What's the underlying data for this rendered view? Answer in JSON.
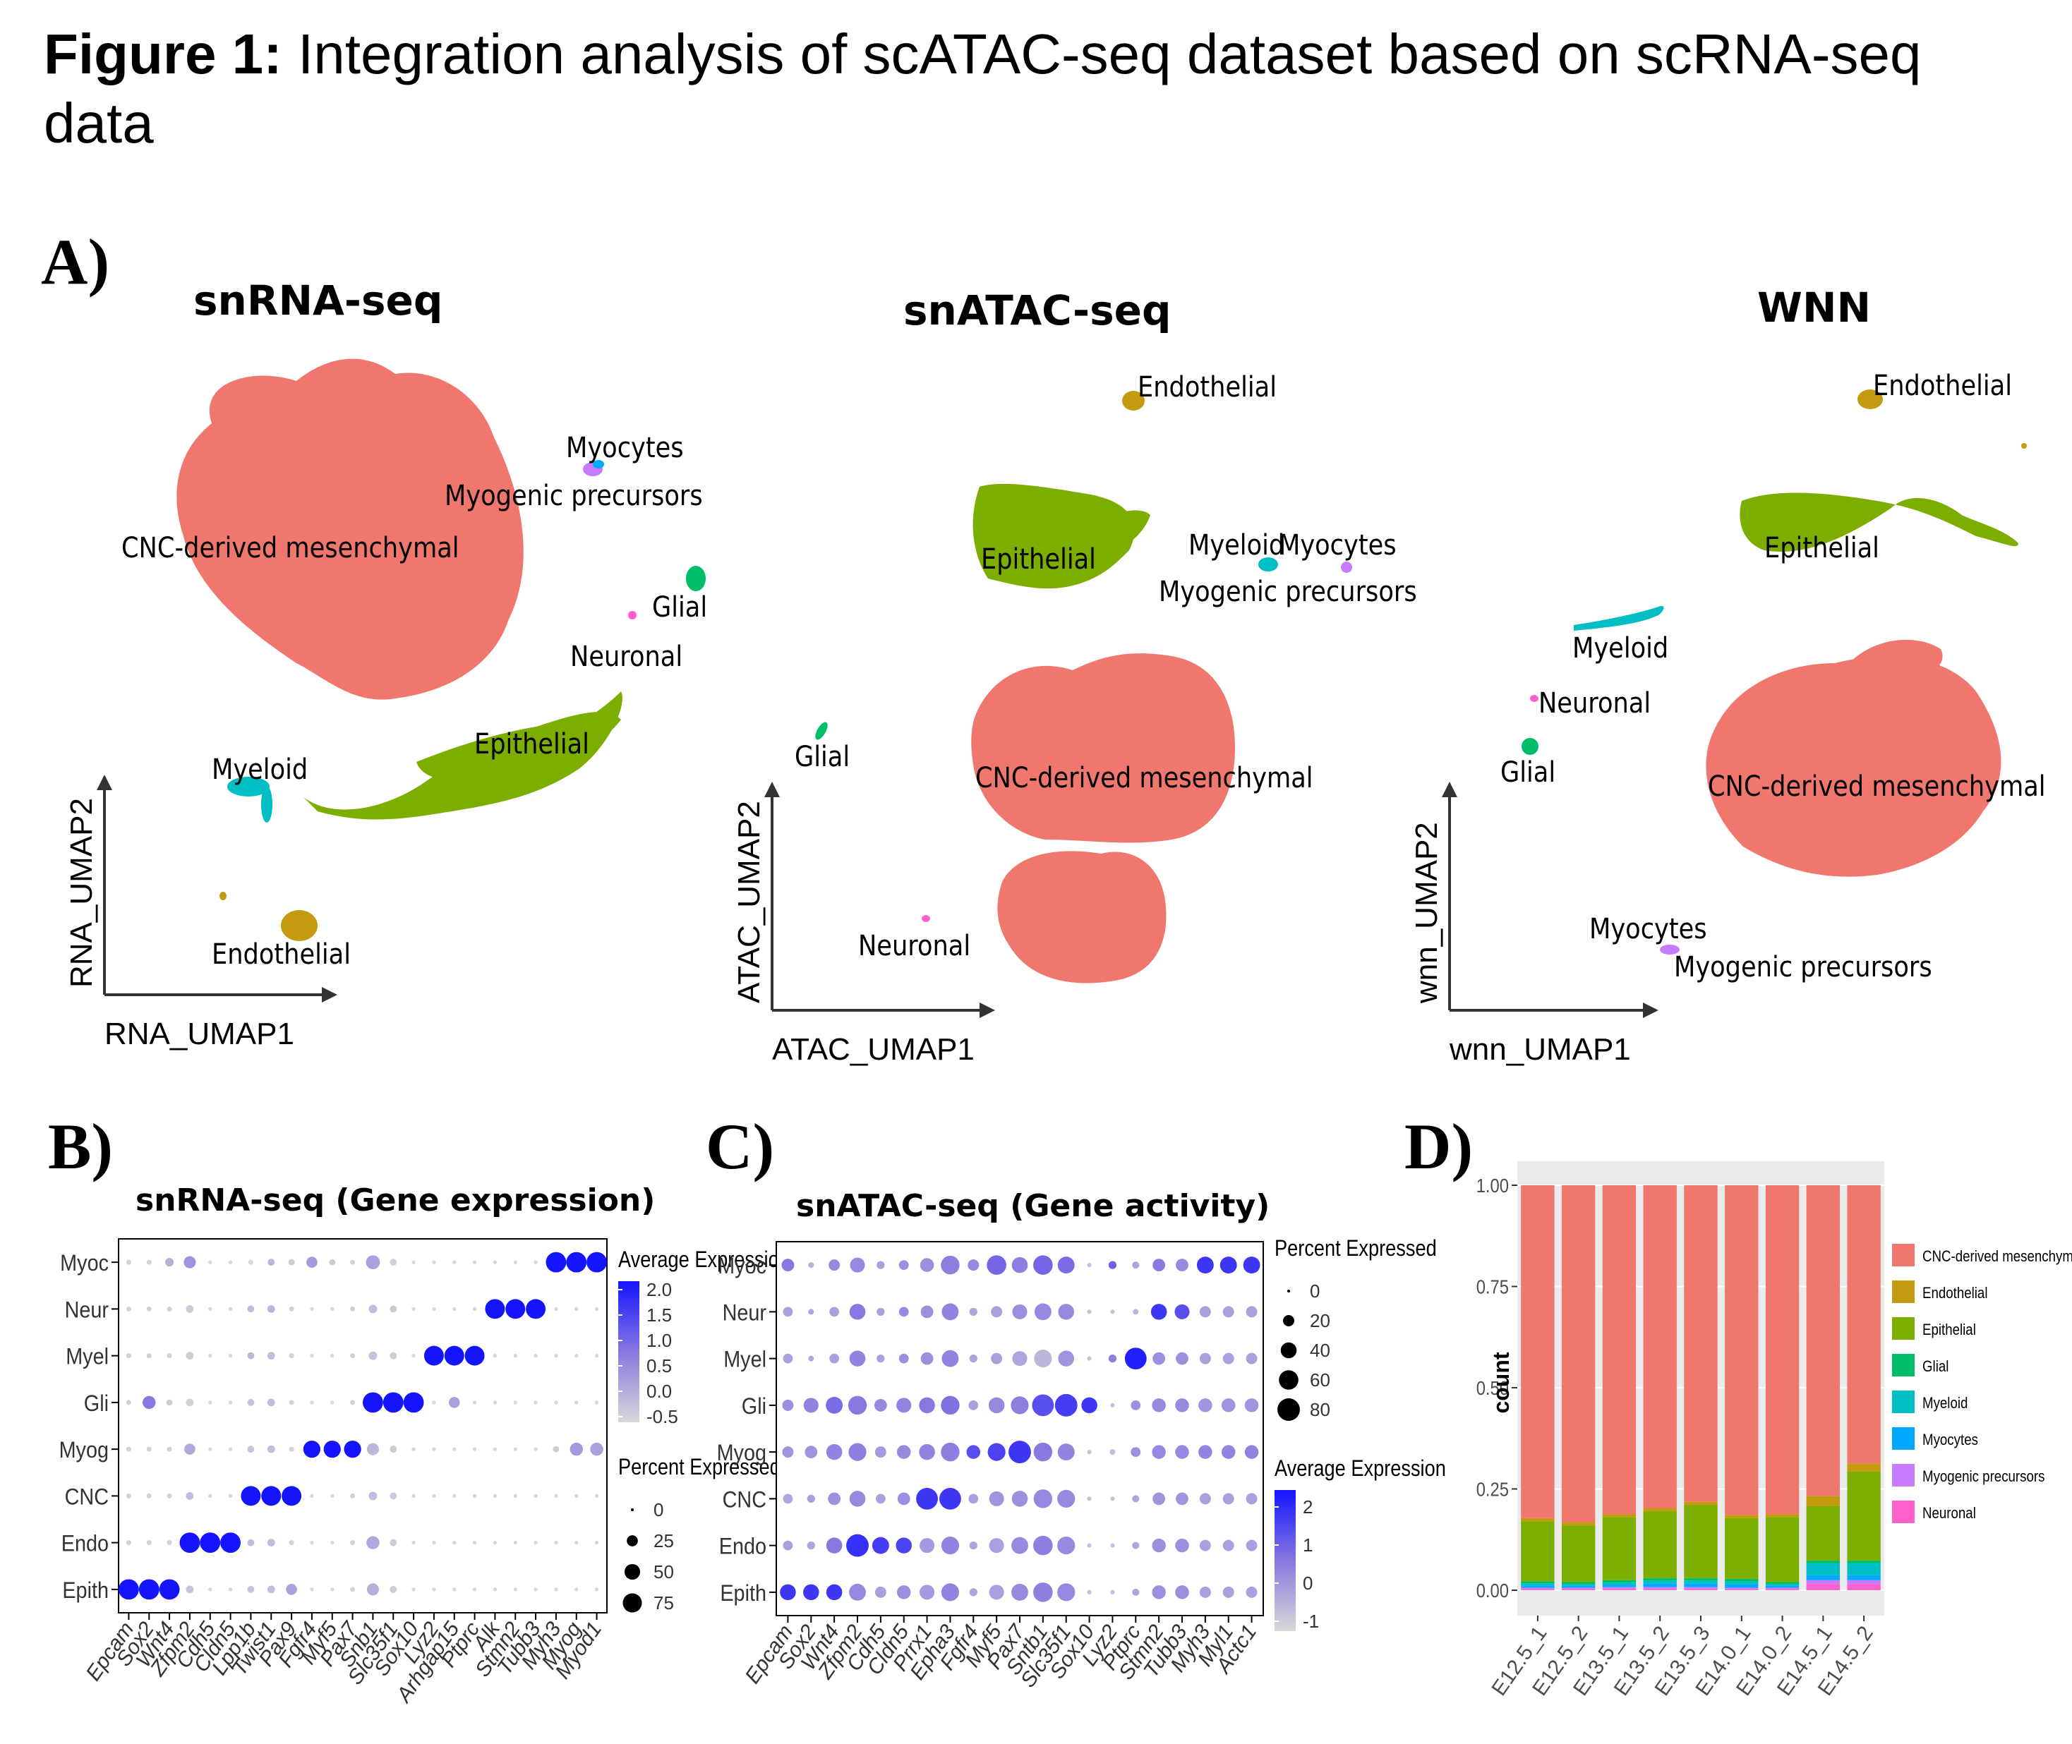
{
  "figure": {
    "label": "Figure 1:",
    "title": "Integration analysis of scATAC-seq dataset based on scRNA-seq data"
  },
  "panels": {
    "A": "A)",
    "B": "B)",
    "C": "C)",
    "D": "D)"
  },
  "colors": {
    "CNC-derived mesenchymal": "#F0776D",
    "Endothelial": "#C49A10",
    "Epithelial": "#7CAE00",
    "Glial": "#00BE67",
    "Myeloid": "#00BFC4",
    "Myocytes": "#00A9FF",
    "Myogenic precursors": "#C77CFF",
    "Neuronal": "#FF61CC"
  },
  "umaps": [
    {
      "title": "snRNA-seq",
      "xlabel": "RNA_UMAP1",
      "ylabel": "RNA_UMAP2",
      "labels": [
        "CNC-derived mesenchymal",
        "Myocytes",
        "Myogenic precursors",
        "Glial",
        "Neuronal",
        "Epithelial",
        "Myeloid",
        "Endothelial"
      ]
    },
    {
      "title": "snATAC-seq",
      "xlabel": "ATAC_UMAP1",
      "ylabel": "ATAC_UMAP2",
      "labels": [
        "Endothelial",
        "Epithelial",
        "Myeloid",
        "Myocytes",
        "Myogenic precursors",
        "Glial",
        "CNC-derived mesenchymal",
        "Neuronal"
      ]
    },
    {
      "title": "WNN",
      "xlabel": "wnn_UMAP1",
      "ylabel": "wnn_UMAP2",
      "labels": [
        "Endothelial",
        "Epithelial",
        "Myeloid",
        "Neuronal",
        "Glial",
        "CNC-derived mesenchymal",
        "Myocytes",
        "Myogenic precursors"
      ]
    }
  ],
  "chart_data": [
    {
      "type": "dotplot",
      "title": "snRNA-seq (Gene expression)",
      "rows": [
        "Myoc",
        "Neur",
        "Myel",
        "Gli",
        "Myog",
        "CNC",
        "Endo",
        "Epith"
      ],
      "columns": [
        "Epcam",
        "Sox2",
        "Wnt4",
        "Zfpm2",
        "Cdh5",
        "Cldn5",
        "Lpp1b",
        "Twist1",
        "Pax9",
        "Fgfr4",
        "Myf5",
        "Pax7",
        "Snb1",
        "Slc35f1",
        "Sox10",
        "Lyz2",
        "Arhgap15",
        "Ptprc",
        "Alk",
        "Stmn2",
        "Tubb3",
        "Myh3",
        "Myog",
        "Myod1"
      ],
      "avg_expression": [
        [
          -0.4,
          -0.4,
          0.1,
          0.5,
          -0.5,
          -0.5,
          -0.5,
          0.0,
          -0.3,
          0.4,
          -0.3,
          -0.4,
          0.3,
          -0.4,
          -0.5,
          -0.5,
          -0.5,
          -0.5,
          -0.5,
          -0.5,
          -0.5,
          2.3,
          2.3,
          2.3
        ],
        [
          -0.4,
          -0.4,
          -0.4,
          -0.3,
          -0.5,
          -0.5,
          -0.1,
          0.0,
          -0.4,
          -0.5,
          -0.5,
          -0.4,
          -0.1,
          -0.3,
          -0.5,
          -0.5,
          -0.5,
          -0.5,
          2.3,
          2.3,
          2.3,
          -0.5,
          -0.5,
          -0.5
        ],
        [
          -0.4,
          -0.4,
          -0.4,
          -0.3,
          -0.5,
          -0.5,
          0.0,
          -0.1,
          -0.4,
          -0.5,
          -0.5,
          -0.4,
          -0.2,
          -0.3,
          -0.5,
          2.3,
          2.3,
          2.3,
          -0.5,
          -0.5,
          -0.5,
          -0.5,
          -0.5,
          -0.5
        ],
        [
          -0.4,
          0.9,
          -0.3,
          -0.4,
          -0.5,
          -0.5,
          -0.2,
          -0.1,
          -0.4,
          -0.5,
          -0.5,
          -0.4,
          2.3,
          2.3,
          2.3,
          -0.5,
          0.3,
          -0.5,
          -0.5,
          -0.5,
          -0.5,
          -0.5,
          -0.5,
          -0.5
        ],
        [
          -0.4,
          -0.4,
          -0.4,
          0.2,
          -0.5,
          -0.5,
          -0.2,
          -0.1,
          -0.4,
          2.3,
          2.3,
          2.3,
          0.0,
          -0.3,
          -0.5,
          -0.5,
          -0.5,
          -0.5,
          -0.5,
          -0.5,
          -0.5,
          -0.3,
          0.4,
          0.3
        ],
        [
          -0.4,
          -0.4,
          -0.4,
          -0.1,
          -0.5,
          -0.5,
          2.3,
          2.3,
          2.3,
          -0.5,
          -0.5,
          -0.4,
          -0.1,
          -0.3,
          -0.5,
          -0.5,
          -0.5,
          -0.5,
          -0.5,
          -0.5,
          -0.5,
          -0.5,
          -0.5,
          -0.5
        ],
        [
          -0.4,
          -0.4,
          -0.4,
          2.3,
          2.3,
          2.3,
          -0.1,
          -0.1,
          -0.4,
          -0.5,
          -0.5,
          -0.4,
          0.2,
          -0.3,
          -0.5,
          -0.5,
          -0.5,
          -0.5,
          -0.5,
          -0.5,
          -0.5,
          -0.5,
          -0.5,
          -0.5
        ],
        [
          2.3,
          2.3,
          2.3,
          -0.2,
          -0.5,
          -0.5,
          -0.2,
          -0.1,
          0.3,
          -0.5,
          -0.5,
          -0.4,
          0.1,
          -0.3,
          -0.5,
          -0.5,
          -0.5,
          -0.5,
          -0.5,
          -0.5,
          -0.5,
          -0.5,
          -0.5,
          -0.5
        ]
      ],
      "pct_expressed": [
        [
          5,
          5,
          15,
          30,
          3,
          3,
          5,
          10,
          8,
          25,
          8,
          5,
          40,
          10,
          3,
          3,
          3,
          3,
          3,
          3,
          3,
          85,
          85,
          85
        ],
        [
          5,
          5,
          5,
          12,
          3,
          3,
          10,
          12,
          5,
          3,
          3,
          5,
          15,
          10,
          3,
          3,
          3,
          3,
          80,
          80,
          80,
          3,
          3,
          3
        ],
        [
          5,
          5,
          5,
          12,
          3,
          3,
          10,
          12,
          5,
          3,
          3,
          5,
          15,
          10,
          3,
          80,
          80,
          80,
          3,
          3,
          3,
          3,
          3,
          3
        ],
        [
          5,
          35,
          8,
          12,
          3,
          3,
          10,
          12,
          5,
          3,
          3,
          5,
          85,
          85,
          85,
          3,
          25,
          3,
          3,
          3,
          3,
          3,
          3,
          3
        ],
        [
          5,
          5,
          5,
          25,
          3,
          3,
          10,
          12,
          5,
          60,
          60,
          60,
          30,
          10,
          3,
          3,
          3,
          3,
          3,
          3,
          3,
          8,
          35,
          35
        ],
        [
          5,
          5,
          5,
          12,
          3,
          3,
          80,
          80,
          80,
          3,
          3,
          5,
          15,
          10,
          3,
          3,
          3,
          3,
          3,
          3,
          3,
          3,
          3,
          3
        ],
        [
          5,
          5,
          5,
          85,
          85,
          85,
          10,
          12,
          5,
          3,
          3,
          5,
          35,
          10,
          3,
          3,
          3,
          3,
          3,
          3,
          3,
          3,
          3,
          3
        ],
        [
          85,
          85,
          85,
          12,
          3,
          3,
          10,
          12,
          25,
          3,
          3,
          5,
          30,
          10,
          3,
          3,
          3,
          3,
          3,
          3,
          3,
          3,
          3,
          3
        ]
      ],
      "legend_expression": {
        "title": "Average Expression",
        "ticks": [
          "2.0",
          "1.5",
          "1.0",
          "0.5",
          "0.0",
          "-0.5"
        ]
      },
      "legend_percent": {
        "title": "Percent Expressed",
        "ticks": [
          "0",
          "25",
          "50",
          "75"
        ]
      }
    },
    {
      "type": "dotplot",
      "title": "snATAC-seq (Gene activity)",
      "rows": [
        "Myoc",
        "Neur",
        "Myel",
        "Gli",
        "Myog",
        "CNC",
        "Endo",
        "Epith"
      ],
      "columns": [
        "Epcam",
        "Sox2",
        "Wnt4",
        "Zfpm2",
        "Cdh5",
        "Cldn5",
        "Prrx1",
        "Epha3",
        "Fgfr4",
        "Myf5",
        "Pax7",
        "Sntb1",
        "Slc35f1",
        "Sox10",
        "Lyz2",
        "Ptprc",
        "Stmn2",
        "Tubb3",
        "Myh3",
        "Myl1",
        "Actc1"
      ],
      "avg_expression": [
        [
          0.5,
          -0.5,
          0.2,
          0.2,
          -0.2,
          0.1,
          0.1,
          0.4,
          0.2,
          0.8,
          0.4,
          0.8,
          0.7,
          -0.8,
          0.9,
          -0.3,
          0.5,
          0.2,
          1.6,
          1.6,
          1.6
        ],
        [
          -0.2,
          -0.3,
          -0.2,
          0.5,
          -0.2,
          0.2,
          0.1,
          0.3,
          -0.3,
          -0.2,
          0.1,
          0.2,
          0.2,
          -0.8,
          -0.8,
          -0.6,
          1.6,
          1.2,
          -0.2,
          -0.2,
          -0.2
        ],
        [
          -0.2,
          -0.4,
          -0.2,
          0.3,
          -0.2,
          0.1,
          0.1,
          0.3,
          -0.3,
          -0.2,
          -0.3,
          -0.6,
          0.0,
          -0.8,
          0.4,
          2.0,
          0.1,
          0.1,
          -0.2,
          -0.2,
          -0.2
        ],
        [
          0.1,
          0.3,
          0.7,
          0.5,
          0.2,
          0.3,
          0.5,
          0.6,
          -0.2,
          0.2,
          0.4,
          1.2,
          1.5,
          1.6,
          -0.8,
          0.1,
          0.2,
          0.2,
          0.0,
          0.0,
          0.0
        ],
        [
          0.0,
          0.0,
          0.3,
          0.4,
          -0.1,
          0.2,
          0.3,
          0.4,
          1.2,
          1.4,
          1.6,
          0.5,
          0.3,
          -0.8,
          -0.7,
          0.1,
          0.2,
          0.2,
          0.3,
          0.3,
          0.3
        ],
        [
          -0.3,
          -0.2,
          0.1,
          0.2,
          -0.2,
          0.1,
          1.6,
          1.6,
          -0.2,
          0.0,
          0.1,
          0.2,
          0.2,
          -0.8,
          -0.8,
          -0.3,
          0.0,
          0.0,
          -0.2,
          -0.2,
          -0.2
        ],
        [
          -0.2,
          -0.3,
          0.5,
          1.7,
          1.5,
          1.4,
          -0.1,
          0.3,
          -0.3,
          -0.2,
          0.2,
          0.4,
          0.2,
          -0.8,
          -0.8,
          -0.3,
          0.1,
          0.1,
          -0.2,
          -0.2,
          -0.2
        ],
        [
          1.6,
          1.6,
          1.6,
          0.2,
          -0.2,
          0.1,
          -0.1,
          0.3,
          -0.3,
          -0.2,
          0.2,
          0.4,
          0.2,
          -0.8,
          -0.8,
          -0.3,
          0.1,
          0.1,
          -0.2,
          -0.2,
          -0.2
        ]
      ],
      "pct_expressed": [
        [
          25,
          5,
          20,
          35,
          10,
          15,
          30,
          55,
          20,
          60,
          40,
          60,
          45,
          3,
          10,
          8,
          25,
          25,
          45,
          45,
          45
        ],
        [
          15,
          5,
          15,
          40,
          10,
          15,
          25,
          45,
          10,
          20,
          35,
          45,
          40,
          3,
          3,
          5,
          40,
          35,
          20,
          20,
          20
        ],
        [
          15,
          5,
          15,
          40,
          10,
          15,
          25,
          45,
          10,
          20,
          35,
          50,
          40,
          3,
          10,
          75,
          25,
          25,
          20,
          20,
          20
        ],
        [
          20,
          35,
          45,
          55,
          25,
          35,
          40,
          55,
          15,
          40,
          50,
          75,
          80,
          40,
          3,
          15,
          30,
          30,
          30,
          30,
          30
        ],
        [
          20,
          25,
          40,
          50,
          20,
          30,
          40,
          55,
          30,
          50,
          80,
          55,
          45,
          3,
          5,
          15,
          30,
          30,
          30,
          30,
          30
        ],
        [
          15,
          10,
          25,
          40,
          15,
          25,
          75,
          75,
          15,
          35,
          40,
          55,
          50,
          3,
          3,
          8,
          25,
          25,
          20,
          20,
          20
        ],
        [
          15,
          10,
          40,
          80,
          45,
          40,
          35,
          50,
          10,
          35,
          45,
          60,
          50,
          3,
          3,
          8,
          30,
          30,
          20,
          20,
          20
        ],
        [
          40,
          40,
          40,
          45,
          20,
          30,
          35,
          50,
          10,
          35,
          45,
          60,
          50,
          3,
          3,
          8,
          30,
          30,
          20,
          20,
          20
        ]
      ],
      "legend_percent": {
        "title": "Percent Expressed",
        "ticks": [
          "0",
          "20",
          "40",
          "60",
          "80"
        ]
      },
      "legend_expression": {
        "title": "Average Expression",
        "ticks": [
          "2",
          "1",
          "0",
          "-1"
        ]
      }
    },
    {
      "type": "stacked_bar",
      "ylabel": "count",
      "categories": [
        "E12.5_1",
        "E12.5_2",
        "E13.5_1",
        "E13.5_2",
        "E13.5_3",
        "E14.0_1",
        "E14.0_2",
        "E14.5_1",
        "E14.5_2"
      ],
      "yticks": [
        "0.00",
        "0.25",
        "0.50",
        "0.75",
        "1.00"
      ],
      "ylim": [
        0,
        1
      ],
      "legend_position": "right",
      "series": [
        {
          "name": "Neuronal",
          "values": [
            0.003,
            0.003,
            0.003,
            0.003,
            0.003,
            0.003,
            0.003,
            0.015,
            0.015
          ]
        },
        {
          "name": "Myogenic precursors",
          "values": [
            0.003,
            0.003,
            0.005,
            0.005,
            0.005,
            0.003,
            0.003,
            0.01,
            0.01
          ]
        },
        {
          "name": "Myocytes",
          "values": [
            0.005,
            0.005,
            0.005,
            0.008,
            0.008,
            0.008,
            0.005,
            0.012,
            0.012
          ]
        },
        {
          "name": "Myeloid",
          "values": [
            0.006,
            0.004,
            0.006,
            0.008,
            0.008,
            0.008,
            0.004,
            0.03,
            0.03
          ]
        },
        {
          "name": "Glial",
          "values": [
            0.005,
            0.005,
            0.006,
            0.006,
            0.006,
            0.006,
            0.005,
            0.006,
            0.006
          ]
        },
        {
          "name": "Epithelial",
          "values": [
            0.148,
            0.14,
            0.155,
            0.165,
            0.18,
            0.15,
            0.16,
            0.135,
            0.22
          ]
        },
        {
          "name": "Endothelial",
          "values": [
            0.008,
            0.008,
            0.008,
            0.008,
            0.008,
            0.008,
            0.008,
            0.025,
            0.02
          ]
        },
        {
          "name": "CNC-derived mesenchymal",
          "values": [
            0.822,
            0.832,
            0.812,
            0.797,
            0.782,
            0.814,
            0.812,
            0.767,
            0.687
          ]
        }
      ],
      "legend": [
        "CNC-derived mesenchymal",
        "Endothelial",
        "Epithelial",
        "Glial",
        "Myeloid",
        "Myocytes",
        "Myogenic precursors",
        "Neuronal"
      ]
    }
  ]
}
